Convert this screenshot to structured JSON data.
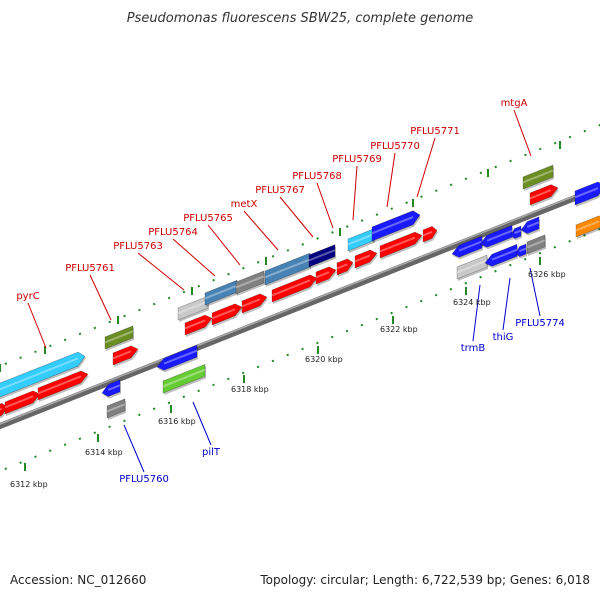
{
  "title": "Pseudomonas fluorescens SBW25, complete genome",
  "footer": {
    "accession": "Accession: NC_012660",
    "summary": "Topology: circular; Length: 6,722,539 bp; Genes: 6,018"
  },
  "ticks": [
    "6312 kbp",
    "6314 kbp",
    "6316 kbp",
    "6318 kbp",
    "6320 kbp",
    "6322 kbp",
    "6324 kbp",
    "6326 kbp"
  ],
  "labels": {
    "pyrC": "pyrC",
    "PFLU5761": "PFLU5761",
    "PFLU5763": "PFLU5763",
    "PFLU5764": "PFLU5764",
    "PFLU5765": "PFLU5765",
    "metX": "metX",
    "PFLU5767": "PFLU5767",
    "PFLU5768": "PFLU5768",
    "PFLU5769": "PFLU5769",
    "PFLU5770": "PFLU5770",
    "PFLU5771": "PFLU5771",
    "mtgA": "mtgA",
    "PFLU5760": "PFLU5760",
    "pilT": "pilT",
    "trmB": "trmB",
    "thiG": "thiG",
    "PFLU5774": "PFLU5774"
  },
  "colors": {
    "forward_label": "#cc0000",
    "reverse_label": "#0000cc",
    "red": "#ff0000",
    "blue": "#1a1aff",
    "cyan": "#33ccff",
    "olive": "#6b8e23",
    "grey": "#808080",
    "lightgrey": "#c8c8c8",
    "steelblue": "#4682b4",
    "navy": "#000080",
    "green": "#66cc33",
    "orange": "#ff8800",
    "backbone": "#888888",
    "tick_green": "#228822"
  }
}
